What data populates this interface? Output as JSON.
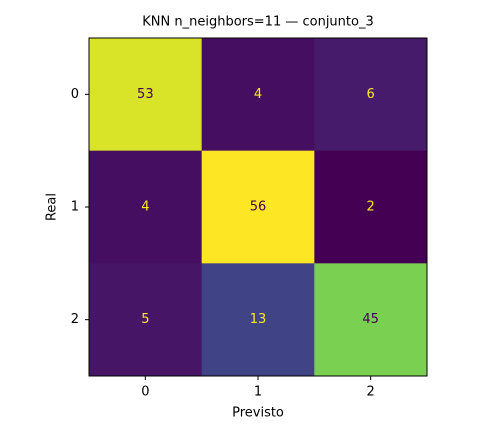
{
  "chart_data": {
    "type": "heatmap",
    "title": "KNN n_neighbors=11 — conjunto_3",
    "xlabel": "Previsto",
    "ylabel": "Real",
    "xticks": [
      0,
      1,
      2
    ],
    "yticks": [
      0,
      1,
      2
    ],
    "values": [
      [
        53,
        4,
        6
      ],
      [
        4,
        56,
        2
      ],
      [
        5,
        13,
        45
      ]
    ],
    "colormap": "viridis"
  }
}
